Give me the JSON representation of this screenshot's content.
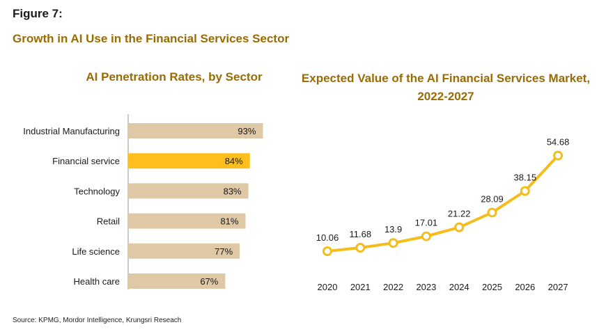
{
  "figure": {
    "label": "Figure 7:",
    "title": "Growth in AI Use in the Financial Services Sector",
    "source": "Source: KPMG, Mordor Intelligence, Krungsri Reseach"
  },
  "colors": {
    "title_gold": "#9a6b00",
    "bar_default": "#dfc8a5",
    "bar_highlight": "#fdbf1d",
    "line": "#f5bd1b"
  },
  "chart_data": [
    {
      "type": "bar",
      "orientation": "horizontal",
      "title": "AI Penetration Rates, by Sector",
      "categories": [
        "Industrial Manufacturing",
        "Financial service",
        "Technology",
        "Retail",
        "Life science",
        "Health care"
      ],
      "values": [
        93,
        84,
        83,
        81,
        77,
        67
      ],
      "value_labels": [
        "93%",
        "84%",
        "83%",
        "81%",
        "77%",
        "67%"
      ],
      "highlight": "Financial service",
      "xlim": [
        0,
        100
      ],
      "grid": false
    },
    {
      "type": "line",
      "title": "Expected Value of the AI Financial Services Market, 2022-2027",
      "x": [
        "2020",
        "2021",
        "2022",
        "2023",
        "2024",
        "2025",
        "2026",
        "2027"
      ],
      "values": [
        10.06,
        11.68,
        13.9,
        17.01,
        21.22,
        28.09,
        38.15,
        54.68
      ],
      "value_labels": [
        "10.06",
        "11.68",
        "13.9",
        "17.01",
        "21.22",
        "28.09",
        "38.15",
        "54.68"
      ],
      "ylim": [
        0,
        60
      ],
      "grid": false
    }
  ]
}
